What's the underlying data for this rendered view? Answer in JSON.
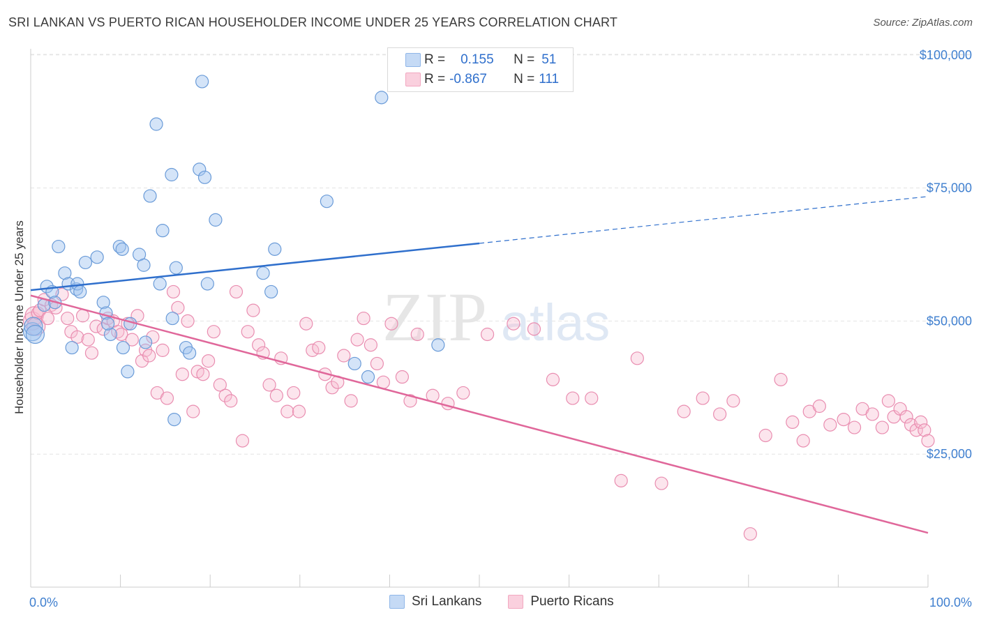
{
  "title": "SRI LANKAN VS PUERTO RICAN HOUSEHOLDER INCOME UNDER 25 YEARS CORRELATION CHART",
  "source": "Source: ZipAtlas.com",
  "watermark": {
    "zip": "ZIP",
    "atlas": "atlas"
  },
  "legend": {
    "r_label": "R =",
    "n_label": "N =",
    "series": [
      {
        "r": "0.155",
        "n": "51"
      },
      {
        "r": "-0.867",
        "n": "111"
      }
    ]
  },
  "bottom_legend": [
    "Sri Lankans",
    "Puerto Ricans"
  ],
  "chart_data": {
    "type": "scatter",
    "title": "SRI LANKAN VS PUERTO RICAN HOUSEHOLDER INCOME UNDER 25 YEARS CORRELATION CHART",
    "xlabel": "",
    "ylabel": "Householder Income Under 25 years",
    "xlim": [
      0,
      100
    ],
    "ylim": [
      0,
      105000
    ],
    "x_tick_labels": [
      "0.0%",
      "100.0%"
    ],
    "y_ticks": [
      25000,
      50000,
      75000,
      100000
    ],
    "y_tick_labels": [
      "$25,000",
      "$50,000",
      "$75,000",
      "$100,000"
    ],
    "grid": true,
    "legend_position": "top-center",
    "colors": {
      "Sri Lankans": "#8fb6e8",
      "Puerto Ricans": "#f2a7c0",
      "Sri Lankans line": "#2f6fcc",
      "Puerto Ricans line": "#e0679a"
    },
    "series": [
      {
        "name": "Sri Lankans",
        "x": [
          0.2,
          0.3,
          0.5,
          1.5,
          1.8,
          2.4,
          2.7,
          3.1,
          3.8,
          4.2,
          4.6,
          5.1,
          5.2,
          5.5,
          6.1,
          7.4,
          8.1,
          8.4,
          8.9,
          8.6,
          9.9,
          10.2,
          10.3,
          10.8,
          11.1,
          12.1,
          12.6,
          12.8,
          13.3,
          14,
          14.4,
          14.7,
          15.7,
          15.8,
          16,
          16.2,
          17.3,
          17.7,
          18.8,
          19.1,
          19.4,
          19.7,
          20.6,
          25.9,
          26.8,
          27.2,
          33,
          36.1,
          37.6,
          39.1,
          45.4
        ],
        "y": [
          48000,
          49000,
          47500,
          53000,
          56500,
          55500,
          53500,
          64000,
          59000,
          57000,
          45000,
          56000,
          57000,
          55500,
          61000,
          62000,
          53500,
          51500,
          47500,
          49500,
          64000,
          63500,
          45000,
          40500,
          49500,
          62500,
          60500,
          46000,
          73500,
          87000,
          57000,
          67000,
          77500,
          50500,
          31500,
          60000,
          45000,
          44000,
          78500,
          95000,
          77000,
          57000,
          69000,
          59000,
          55500,
          63500,
          72500,
          42000,
          39500,
          92000,
          45500
        ]
      },
      {
        "name": "Puerto Ricans",
        "x": [
          0.2,
          0.4,
          0.6,
          0.8,
          1,
          1.5,
          1.9,
          2.3,
          2.8,
          3.5,
          4.1,
          4.5,
          5.2,
          5.8,
          6.4,
          6.8,
          7.3,
          8.1,
          8.6,
          9.2,
          9.7,
          10.1,
          10.8,
          11.3,
          11.9,
          12.4,
          12.8,
          13.2,
          13.6,
          14.1,
          14.7,
          15.2,
          15.9,
          16.4,
          16.9,
          17.5,
          18.1,
          18.6,
          19.2,
          19.8,
          20.4,
          21.1,
          21.7,
          22.3,
          22.9,
          23.6,
          24.2,
          24.8,
          25.4,
          25.9,
          26.6,
          27.4,
          27.9,
          28.6,
          29.3,
          29.9,
          30.7,
          31.4,
          32.1,
          32.8,
          33.6,
          34.2,
          34.9,
          35.7,
          36.4,
          37.1,
          37.9,
          38.6,
          39.3,
          40.2,
          41.4,
          42.3,
          43.1,
          44.8,
          46.5,
          48.2,
          50.9,
          53.8,
          56.1,
          58.2,
          60.4,
          62.5,
          65.8,
          67.6,
          70.3,
          72.8,
          74.9,
          76.8,
          78.3,
          80.2,
          81.9,
          83.6,
          84.9,
          86.1,
          86.8,
          87.9,
          89.1,
          90.6,
          91.8,
          92.7,
          93.8,
          94.9,
          95.6,
          96.2,
          96.9,
          97.6,
          98.1,
          98.7,
          99.2,
          99.6,
          100
        ],
        "y": [
          50000,
          51000,
          49000,
          51500,
          52000,
          54000,
          50500,
          53000,
          52500,
          55000,
          50500,
          48000,
          47000,
          51000,
          46500,
          44000,
          49000,
          48500,
          50500,
          50000,
          48000,
          47500,
          49500,
          46500,
          51000,
          42500,
          44500,
          43500,
          47000,
          36500,
          44500,
          35500,
          55500,
          52500,
          40000,
          50000,
          33000,
          40500,
          40000,
          42500,
          48000,
          38000,
          36000,
          35000,
          55500,
          27500,
          48000,
          52000,
          45500,
          44000,
          38000,
          36000,
          43000,
          33000,
          36500,
          33000,
          49500,
          44500,
          45000,
          40000,
          37500,
          38500,
          43500,
          35000,
          46500,
          50500,
          45500,
          42000,
          38500,
          49500,
          39500,
          35000,
          47500,
          36000,
          34500,
          36500,
          47500,
          49500,
          48500,
          39000,
          35500,
          35500,
          20000,
          43000,
          19500,
          33000,
          35500,
          32500,
          35000,
          10000,
          28500,
          39000,
          31000,
          27500,
          33000,
          34000,
          30500,
          31500,
          30000,
          33500,
          32500,
          30000,
          35000,
          32000,
          33500,
          32000,
          30500,
          29500,
          31000,
          29500,
          27500
        ],
        "note_y_values_estimated": ""
      }
    ],
    "trend_lines": [
      {
        "series": "Sri Lankans",
        "x": [
          0,
          50
        ],
        "y": [
          55800,
          64600
        ],
        "dashed_extension_to": [
          100,
          73400
        ]
      },
      {
        "series": "Puerto Ricans",
        "x": [
          0,
          100
        ],
        "y": [
          54800,
          10200
        ]
      }
    ]
  }
}
